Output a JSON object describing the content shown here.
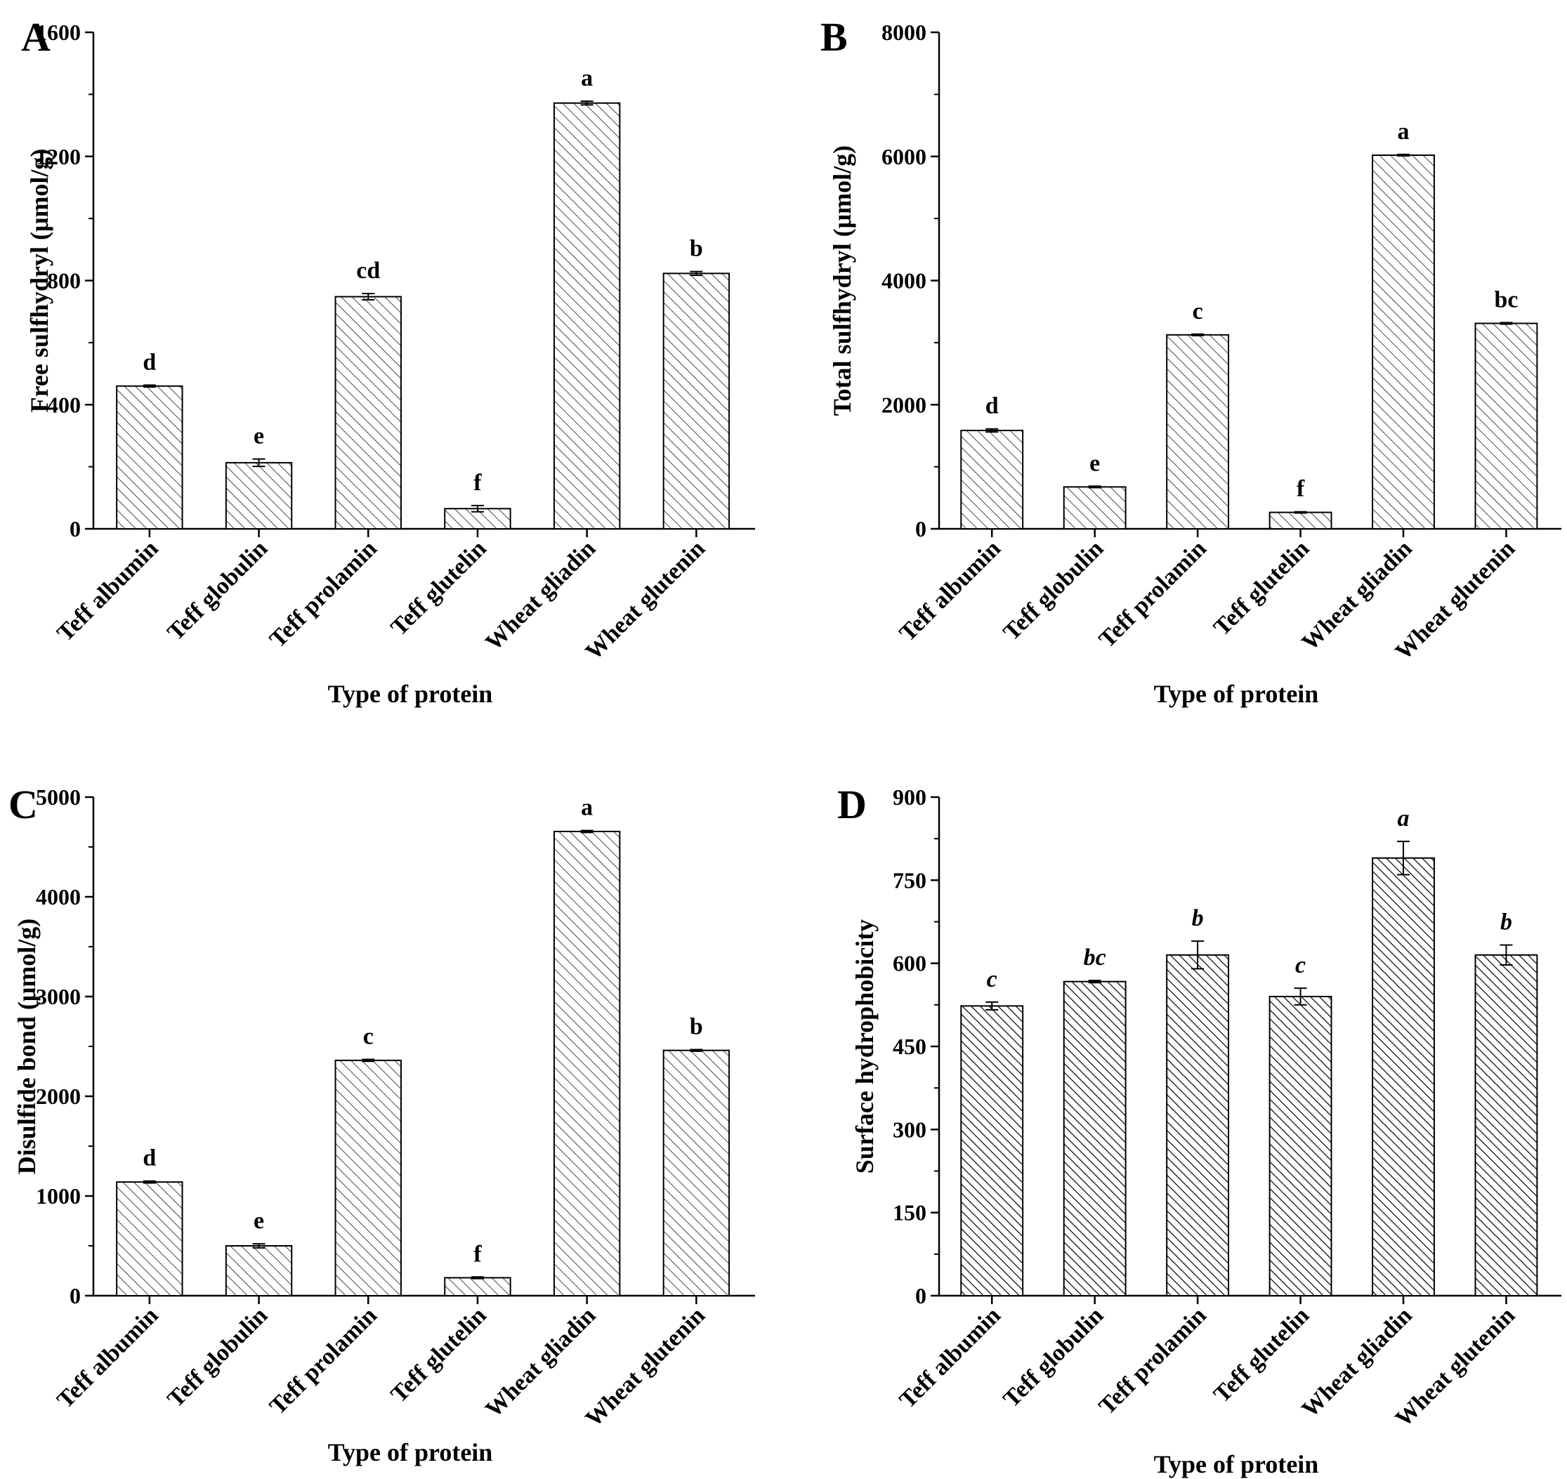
{
  "chart_data": [
    {
      "panel": "A",
      "type": "bar",
      "title": "",
      "xlabel": "Type of protein",
      "ylabel": "Free sulfhydryl (μmol/g)",
      "ylim": [
        0,
        1600
      ],
      "yticks": [
        "0",
        "400",
        "800",
        "1200",
        "1600"
      ],
      "yticks_values": [
        0,
        400,
        800,
        1200,
        1600
      ],
      "categories": [
        "Teff albumin",
        "Teff globulin",
        "Teff prolamin",
        "Teff glutelin",
        "Wheat gliadin",
        "Wheat glutenin"
      ],
      "values": [
        460,
        213,
        748,
        65,
        1372,
        823
      ],
      "errors": [
        3,
        12,
        10,
        10,
        6,
        6
      ],
      "significance": [
        "d",
        "e",
        "cd",
        "f",
        "a",
        "b"
      ],
      "significance_italic": false,
      "pattern": "light"
    },
    {
      "panel": "B",
      "type": "bar",
      "title": "",
      "xlabel": "Type of protein",
      "ylabel": "Total sulfhydryl (μmol/g)",
      "ylim": [
        0,
        8000
      ],
      "yticks": [
        "0",
        "2000",
        "4000",
        "6000",
        "8000"
      ],
      "yticks_values": [
        0,
        2000,
        4000,
        6000,
        8000
      ],
      "categories": [
        "Teff albumin",
        "Teff globulin",
        "Teff prolamin",
        "Teff glutelin",
        "Wheat gliadin",
        "Wheat glutenin"
      ],
      "values": [
        1585,
        675,
        3125,
        265,
        6020,
        3310
      ],
      "errors": [
        25,
        12,
        12,
        10,
        12,
        12
      ],
      "significance": [
        "d",
        "e",
        "c",
        "f",
        "a",
        "bc"
      ],
      "significance_italic": false,
      "pattern": "light"
    },
    {
      "panel": "C",
      "type": "bar",
      "title": "",
      "xlabel": "Type of protein",
      "ylabel": "Disulfide bond (μmol/g)",
      "ylim": [
        0,
        5000
      ],
      "yticks": [
        "0",
        "1000",
        "2000",
        "3000",
        "4000",
        "5000"
      ],
      "yticks_values": [
        0,
        1000,
        2000,
        3000,
        4000,
        5000
      ],
      "categories": [
        "Teff albumin",
        "Teff globulin",
        "Teff prolamin",
        "Teff glutelin",
        "Wheat gliadin",
        "Wheat glutenin"
      ],
      "values": [
        1140,
        500,
        2360,
        180,
        4655,
        2460
      ],
      "errors": [
        10,
        20,
        10,
        8,
        10,
        8
      ],
      "significance": [
        "d",
        "e",
        "c",
        "f",
        "a",
        "b"
      ],
      "significance_italic": false,
      "pattern": "light"
    },
    {
      "panel": "D",
      "type": "bar",
      "title": "",
      "xlabel": "Type of protein",
      "ylabel": "Surface hydrophobicity",
      "ylim": [
        0,
        900
      ],
      "yticks": [
        "0",
        "150",
        "300",
        "450",
        "600",
        "750",
        "900"
      ],
      "yticks_values": [
        0,
        150,
        300,
        450,
        600,
        750,
        900
      ],
      "categories": [
        "Teff albumin",
        "Teff globulin",
        "Teff prolamin",
        "Teff glutelin",
        "Wheat gliadin",
        "Wheat glutenin"
      ],
      "values": [
        523,
        567,
        615,
        540,
        790,
        615
      ],
      "errors": [
        7,
        2,
        25,
        15,
        30,
        18
      ],
      "significance": [
        "c",
        "bc",
        "b",
        "c",
        "a",
        "b"
      ],
      "significance_italic": true,
      "pattern": "dense"
    }
  ]
}
